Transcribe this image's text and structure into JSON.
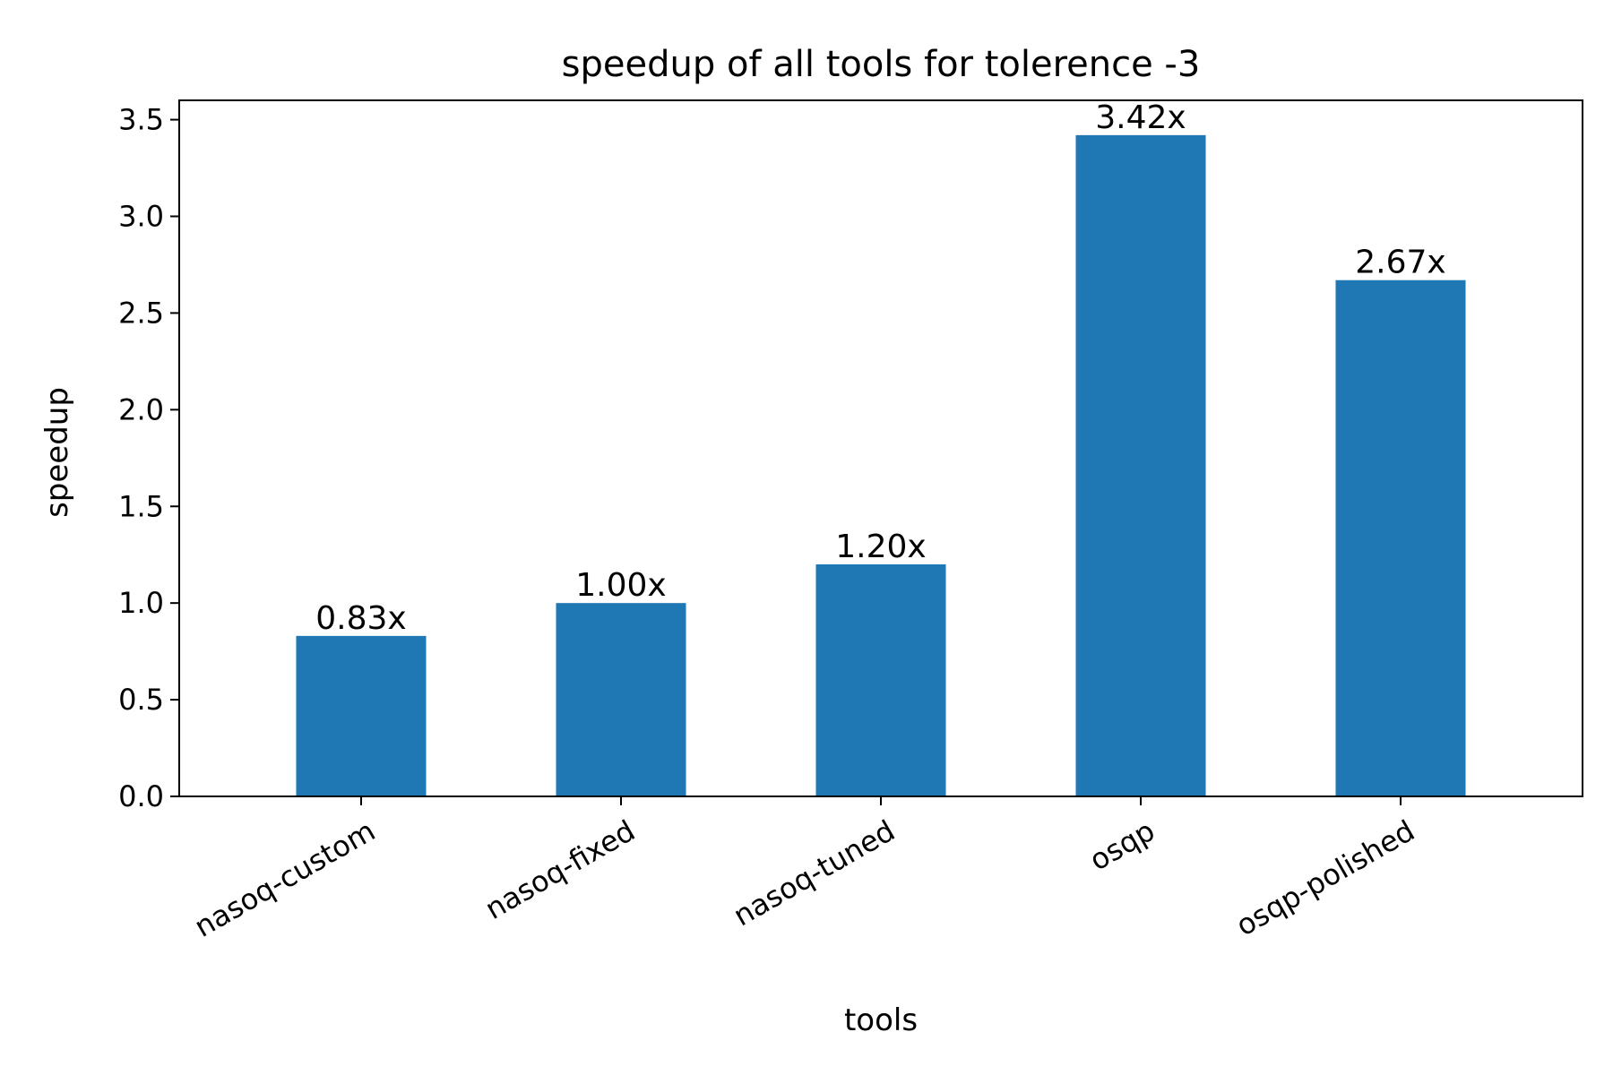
{
  "chart_data": {
    "type": "bar",
    "title": "speedup of all tools for tolerence -3",
    "xlabel": "tools",
    "ylabel": "speedup",
    "categories": [
      "nasoq-custom",
      "nasoq-fixed",
      "nasoq-tuned",
      "osqp",
      "osqp-polished"
    ],
    "values": [
      0.83,
      1.0,
      1.2,
      3.42,
      2.67
    ],
    "value_labels": [
      "0.83x",
      "1.00x",
      "1.20x",
      "3.42x",
      "2.67x"
    ],
    "yticks": [
      0.0,
      0.5,
      1.0,
      1.5,
      2.0,
      2.5,
      3.0,
      3.5
    ],
    "ytick_labels": [
      "0.0",
      "0.5",
      "1.0",
      "1.5",
      "2.0",
      "2.5",
      "3.0",
      "3.5"
    ],
    "ylim": [
      0,
      3.6
    ],
    "bar_color": "#1f77b4",
    "grid": false,
    "legend": false
  }
}
